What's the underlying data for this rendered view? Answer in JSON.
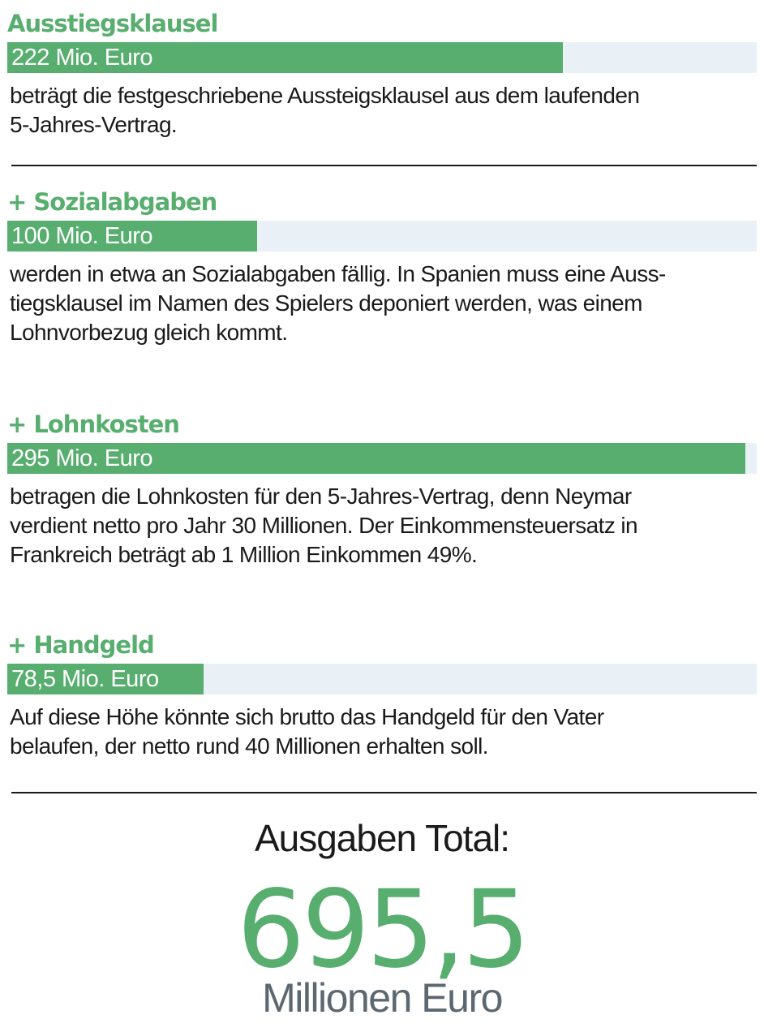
{
  "colors": {
    "accent": "#57ae6e",
    "track": "#e9f1f7",
    "text": "#1a1a1a",
    "unit": "#5c6770"
  },
  "chart_data": {
    "type": "bar",
    "orientation": "horizontal",
    "xlim": [
      0,
      295
    ],
    "bars": [
      {
        "name": "Ausstiegsklausel",
        "value": 222,
        "label": "222 Mio. Euro",
        "description": [
          "beträgt die festgeschriebene Aussteigsklausel aus dem laufenden",
          "5-Jahres-Vertrag."
        ]
      },
      {
        "name": "+ Sozialabgaben",
        "value": 100,
        "label": "100 Mio. Euro",
        "description": [
          "werden in etwa an Sozialabgaben fällig. In Spanien muss eine Auss-",
          "tiegsklausel im Namen des Spielers deponiert werden, was einem",
          "Lohnvorbezug gleich kommt."
        ]
      },
      {
        "name": "+ Lohnkosten",
        "value": 295,
        "label": "295 Mio. Euro",
        "description": [
          "betragen die Lohnkosten für den 5-Jahres-Vertrag, denn Neymar",
          "verdient netto pro Jahr 30 Millionen. Der Einkommensteuersatz in",
          "Frankreich beträgt ab 1 Million Einkommen 49%."
        ]
      },
      {
        "name": "+ Handgeld",
        "value": 78.5,
        "label": "78,5 Mio. Euro",
        "description": [
          "Auf diese Höhe könnte sich brutto das Handgeld für den Vater",
          "belaufen, der netto rund 40 Millionen erhalten soll."
        ]
      }
    ]
  },
  "total": {
    "title": "Ausgaben Total:",
    "value": "695,5",
    "unit": "Millionen Euro"
  }
}
